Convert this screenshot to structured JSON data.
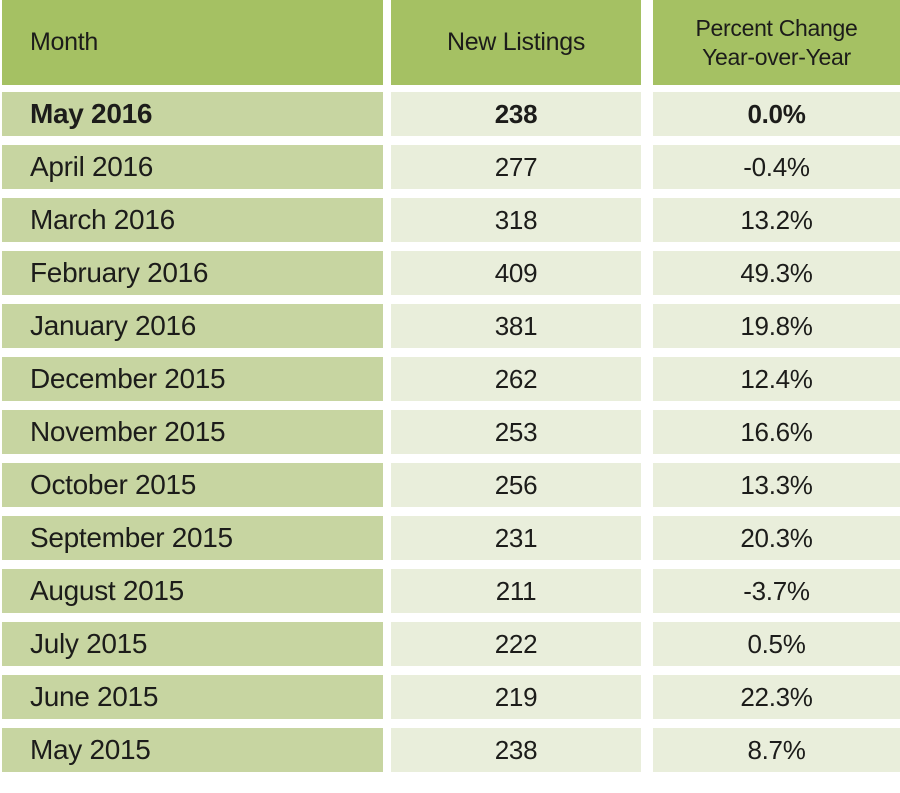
{
  "header": {
    "month": "Month",
    "new_listings": "New Listings",
    "percent_line1": "Percent Change",
    "percent_line2": "Year-over-Year"
  },
  "colors": {
    "header_bg": "#a5c163",
    "month_cell_bg": "#c7d5a1",
    "value_cell_bg": "#e9eedb",
    "gap_bg": "#ffffff",
    "text": "#1c1c1a"
  },
  "chart_data": {
    "type": "table",
    "columns": [
      "Month",
      "New Listings",
      "Percent Change Year-over-Year"
    ],
    "highlighted_row": "May 2016",
    "rows": [
      [
        "May 2016",
        238,
        "0.0%"
      ],
      [
        "April 2016",
        277,
        "-0.4%"
      ],
      [
        "March 2016",
        318,
        "13.2%"
      ],
      [
        "February 2016",
        409,
        "49.3%"
      ],
      [
        "January 2016",
        381,
        "19.8%"
      ],
      [
        "December 2015",
        262,
        "12.4%"
      ],
      [
        "November 2015",
        253,
        "16.6%"
      ],
      [
        "October 2015",
        256,
        "13.3%"
      ],
      [
        "September 2015",
        231,
        "20.3%"
      ],
      [
        "August 2015",
        211,
        "-3.7%"
      ],
      [
        "July 2015",
        222,
        "0.5%"
      ],
      [
        "June 2015",
        219,
        "22.3%"
      ],
      [
        "May 2015",
        238,
        "8.7%"
      ]
    ]
  }
}
